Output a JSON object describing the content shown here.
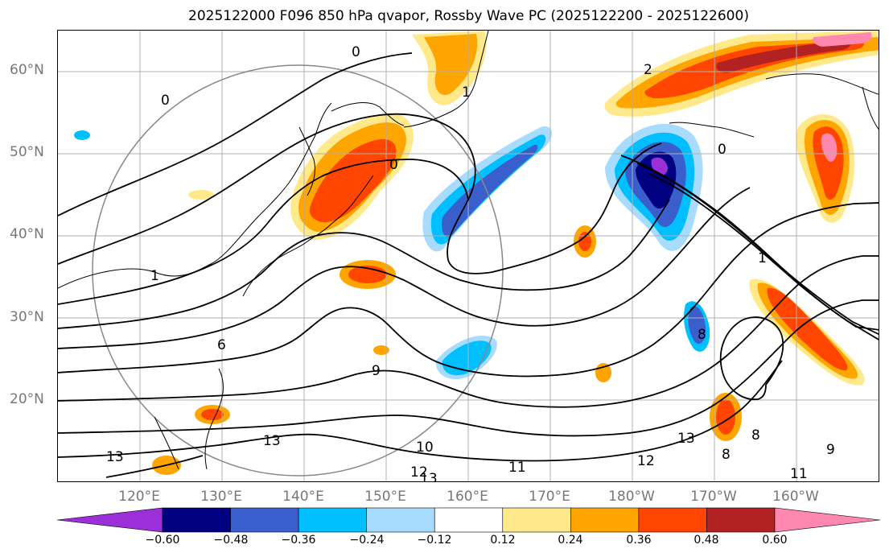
{
  "title": "2025122000 F096 850 hPa qvapor, Rossby Wave PC (2025122200 - 2025122600)",
  "lat_labels": [
    "60°N",
    "50°N",
    "40°N",
    "30°N",
    "20°N"
  ],
  "lon_labels": [
    "120°E",
    "130°E",
    "140°E",
    "150°E",
    "160°E",
    "170°E",
    "180°W",
    "170°W",
    "160°W"
  ],
  "contour_labels": [
    "0",
    "0",
    "0",
    "1",
    "1",
    "1",
    "2",
    "6",
    "8",
    "8",
    "8",
    "9",
    "9",
    "10",
    "11",
    "11",
    "12",
    "12",
    "13",
    "13",
    "13",
    "13"
  ],
  "colorbar": {
    "labels": [
      "−0.60",
      "−0.48",
      "−0.36",
      "−0.24",
      "−0.12",
      "0.12",
      "0.24",
      "0.36",
      "0.48",
      "0.60"
    ],
    "colors": [
      "#9b30d9",
      "#000080",
      "#3a5fcd",
      "#00bfff",
      "#a8dcff",
      "#ffffff",
      "#ffe98a",
      "#ffa500",
      "#ff4500",
      "#b22222",
      "#ff88b0"
    ]
  },
  "colors": {
    "land_outline": "#000000",
    "contour": "#000000",
    "grid": "#b0b0b0",
    "region_circle": "#888888"
  }
}
